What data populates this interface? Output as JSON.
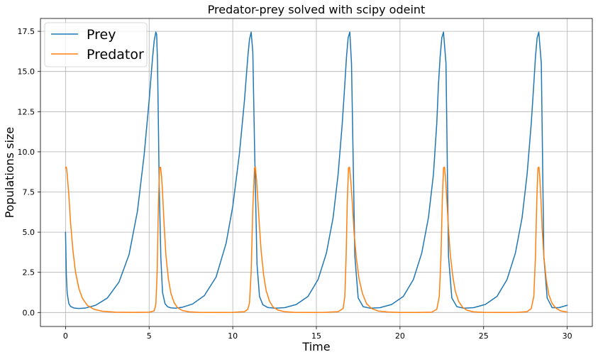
{
  "chart_data": {
    "type": "line",
    "title": "Predator-prey solved with scipy odeint",
    "xlabel": "Time",
    "ylabel": "Populations size",
    "xlim": [
      -1.5,
      31.5
    ],
    "ylim": [
      -0.87,
      18.3
    ],
    "xticks": [
      0,
      5,
      10,
      15,
      20,
      25,
      30
    ],
    "xtick_labels": [
      "0",
      "5",
      "10",
      "15",
      "20",
      "25",
      "30"
    ],
    "yticks": [
      0.0,
      2.5,
      5.0,
      7.5,
      10.0,
      12.5,
      15.0,
      17.5
    ],
    "ytick_labels": [
      "0.0",
      "2.5",
      "5.0",
      "7.5",
      "10.0",
      "12.5",
      "15.0",
      "17.5"
    ],
    "grid": true,
    "legend_position": "upper-left",
    "series": [
      {
        "name": "Prey",
        "color": "#1f77b4",
        "x": [
          0,
          0.05,
          0.1,
          0.2,
          0.3,
          0.5,
          0.8,
          1.2,
          1.8,
          2.5,
          3.2,
          3.8,
          4.3,
          4.7,
          5.0,
          5.2,
          5.3,
          5.4,
          5.45,
          5.5,
          5.55,
          5.6,
          5.7,
          5.8,
          5.95,
          6.1,
          6.3,
          6.6,
          7.0,
          7.6,
          8.3,
          9.0,
          9.6,
          10.0,
          10.4,
          10.7,
          10.9,
          11.0,
          11.1,
          11.2,
          11.3,
          11.45,
          11.6,
          11.8,
          12.1,
          12.5,
          13.1,
          13.8,
          14.5,
          15.1,
          15.6,
          16.0,
          16.3,
          16.55,
          16.7,
          16.8,
          16.9,
          17.0,
          17.1,
          17.3,
          17.5,
          17.8,
          18.2,
          18.8,
          19.5,
          20.2,
          20.8,
          21.3,
          21.7,
          22.0,
          22.2,
          22.3,
          22.4,
          22.5,
          22.6,
          22.75,
          22.9,
          23.1,
          23.4,
          23.8,
          24.4,
          25.1,
          25.8,
          26.4,
          26.9,
          27.3,
          27.6,
          27.85,
          28.0,
          28.1,
          28.2,
          28.3,
          28.45,
          28.6,
          28.8,
          29.1,
          29.5,
          30.0
        ],
        "y": [
          5.0,
          2.3,
          1.2,
          0.55,
          0.38,
          0.28,
          0.25,
          0.28,
          0.45,
          0.9,
          1.9,
          3.6,
          6.3,
          9.8,
          13.2,
          15.8,
          16.9,
          17.45,
          17.3,
          15.6,
          12.0,
          8.0,
          3.4,
          1.25,
          0.55,
          0.36,
          0.29,
          0.27,
          0.33,
          0.53,
          1.05,
          2.2,
          4.3,
          6.6,
          9.9,
          13.2,
          15.9,
          17.0,
          17.45,
          16.2,
          10.5,
          3.0,
          1.0,
          0.48,
          0.31,
          0.27,
          0.3,
          0.5,
          1.0,
          2.05,
          3.7,
          5.9,
          8.6,
          11.8,
          14.2,
          15.9,
          17.1,
          17.45,
          15.5,
          3.5,
          0.9,
          0.36,
          0.27,
          0.3,
          0.5,
          1.0,
          2.05,
          3.7,
          5.9,
          8.6,
          11.8,
          14.2,
          15.9,
          17.1,
          17.45,
          15.5,
          3.5,
          0.9,
          0.36,
          0.27,
          0.3,
          0.5,
          1.0,
          2.05,
          3.7,
          5.9,
          8.6,
          11.8,
          14.2,
          15.9,
          17.1,
          17.45,
          15.5,
          3.5,
          0.9,
          0.3,
          0.3,
          0.45
        ]
      },
      {
        "name": "Predator",
        "color": "#ff7f0e",
        "x": [
          0,
          0.05,
          0.1,
          0.2,
          0.3,
          0.45,
          0.6,
          0.8,
          1.0,
          1.3,
          1.7,
          2.2,
          3.0,
          4.0,
          5.0,
          5.3,
          5.4,
          5.48,
          5.55,
          5.62,
          5.68,
          5.74,
          5.8,
          5.9,
          6.0,
          6.15,
          6.3,
          6.5,
          6.7,
          7.0,
          7.4,
          8.0,
          9.0,
          10.0,
          10.7,
          10.9,
          11.0,
          11.1,
          11.2,
          11.3,
          11.35,
          11.42,
          11.5,
          11.6,
          11.7,
          11.85,
          12.0,
          12.2,
          12.4,
          12.7,
          13.1,
          13.7,
          14.5,
          15.5,
          16.3,
          16.6,
          16.7,
          16.78,
          16.85,
          16.92,
          16.98,
          17.05,
          17.15,
          17.25,
          17.4,
          17.55,
          17.75,
          18.0,
          18.3,
          18.7,
          19.3,
          20.0,
          21.0,
          21.9,
          22.2,
          22.35,
          22.45,
          22.53,
          22.6,
          22.66,
          22.72,
          22.8,
          22.9,
          23.0,
          23.15,
          23.3,
          23.5,
          23.75,
          24.0,
          24.4,
          25.0,
          26.0,
          27.0,
          27.6,
          27.85,
          28.0,
          28.1,
          28.18,
          28.25,
          28.31,
          28.36,
          28.43,
          28.5,
          28.6,
          28.75,
          28.9,
          29.1,
          29.35,
          29.6,
          30.0
        ],
        "y": [
          9.0,
          9.05,
          8.6,
          7.3,
          5.6,
          3.8,
          2.5,
          1.5,
          0.9,
          0.45,
          0.2,
          0.08,
          0.02,
          0.01,
          0.02,
          0.1,
          0.5,
          2.5,
          6.5,
          9.0,
          9.05,
          8.5,
          7.5,
          5.4,
          3.6,
          2.1,
          1.2,
          0.6,
          0.3,
          0.12,
          0.04,
          0.01,
          0.0,
          0.01,
          0.05,
          0.2,
          0.6,
          2.5,
          6.5,
          9.0,
          9.05,
          8.3,
          7.0,
          5.3,
          3.8,
          2.3,
          1.35,
          0.7,
          0.35,
          0.15,
          0.05,
          0.01,
          0.0,
          0.01,
          0.05,
          0.25,
          1.0,
          3.5,
          7.0,
          9.0,
          9.05,
          8.3,
          6.8,
          5.0,
          3.3,
          2.1,
          1.2,
          0.55,
          0.25,
          0.09,
          0.03,
          0.0,
          0.0,
          0.02,
          0.2,
          1.0,
          3.5,
          7.0,
          9.0,
          9.05,
          8.4,
          7.0,
          5.2,
          3.7,
          2.3,
          1.35,
          0.7,
          0.32,
          0.14,
          0.04,
          0.01,
          0.0,
          0.01,
          0.05,
          0.25,
          1.0,
          3.5,
          7.0,
          9.0,
          9.05,
          8.4,
          7.0,
          5.2,
          3.5,
          2.0,
          1.1,
          0.55,
          0.25,
          0.1,
          0.03
        ]
      }
    ]
  }
}
